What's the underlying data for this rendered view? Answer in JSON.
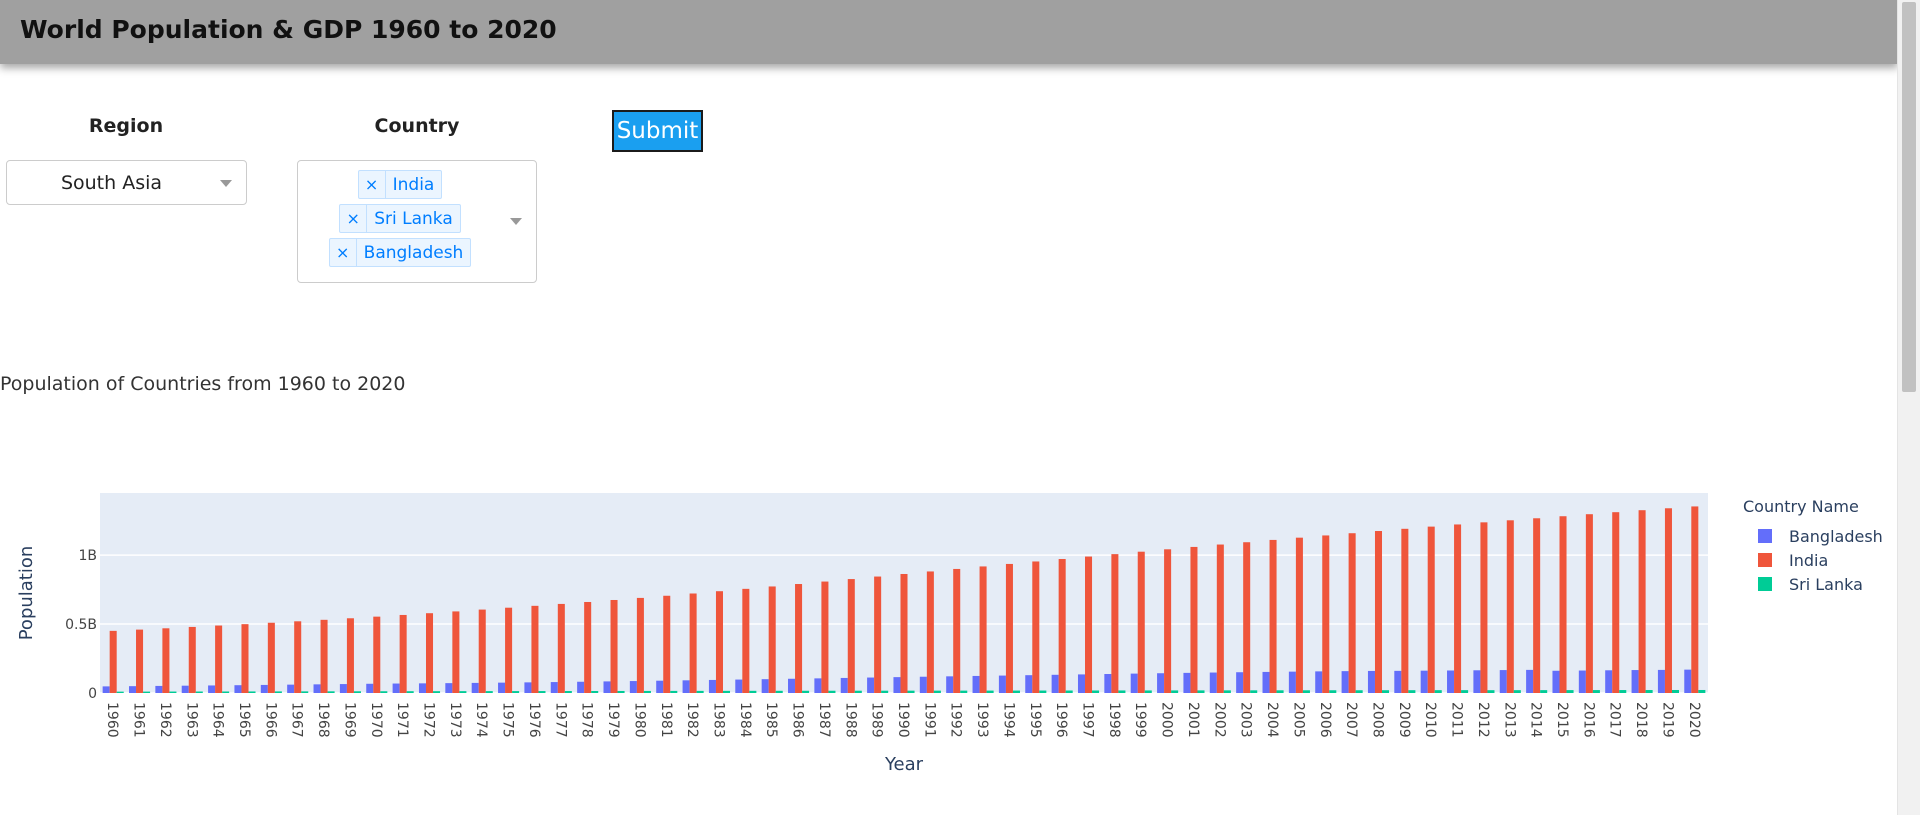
{
  "header": {
    "title": "World Population & GDP 1960 to 2020"
  },
  "controls": {
    "region_label": "Region",
    "region_value": "South Asia",
    "country_label": "Country",
    "selected_countries": [
      "India",
      "Sri Lanka",
      "Bangladesh"
    ],
    "remove_symbol": "×",
    "submit_label": "Submit"
  },
  "section": {
    "title": "Population of Countries from 1960 to 2020"
  },
  "colors": {
    "bangladesh": "#636efa",
    "india": "#ef553b",
    "sri_lanka": "#00cc96",
    "plot_bg": "#e5ecf6"
  },
  "chart_data": {
    "type": "bar",
    "title": "",
    "xlabel": "Year",
    "ylabel": "Population",
    "ylim": [
      0,
      1450000000
    ],
    "y_ticks": [
      0,
      500000000,
      1000000000
    ],
    "y_tick_labels": [
      "0",
      "0.5B",
      "1B"
    ],
    "grid": true,
    "legend": {
      "title": "Country Name",
      "placement": "right"
    },
    "categories": [
      "1960",
      "1961",
      "1962",
      "1963",
      "1964",
      "1965",
      "1966",
      "1967",
      "1968",
      "1969",
      "1970",
      "1971",
      "1972",
      "1973",
      "1974",
      "1975",
      "1976",
      "1977",
      "1978",
      "1979",
      "1980",
      "1981",
      "1982",
      "1983",
      "1984",
      "1985",
      "1986",
      "1987",
      "1988",
      "1989",
      "1990",
      "1991",
      "1992",
      "1993",
      "1994",
      "1995",
      "1996",
      "1997",
      "1998",
      "1999",
      "2000",
      "2001",
      "2002",
      "2003",
      "2004",
      "2005",
      "2006",
      "2007",
      "2008",
      "2009",
      "2010",
      "2011",
      "2012",
      "2013",
      "2014",
      "2015",
      "2016",
      "2017",
      "2018",
      "2019",
      "2020"
    ],
    "series": [
      {
        "name": "Bangladesh",
        "color": "#636efa",
        "values": [
          48000000,
          49600000,
          51300000,
          53000000,
          54700000,
          56600000,
          58500000,
          60600000,
          62700000,
          64800000,
          66900000,
          68600000,
          70000000,
          71500000,
          73200000,
          75100000,
          77100000,
          79300000,
          81600000,
          84100000,
          86600000,
          89200000,
          91900000,
          94600000,
          97400000,
          100200000,
          103200000,
          106100000,
          109100000,
          112100000,
          115100000,
          118000000,
          120800000,
          123600000,
          126300000,
          129200000,
          132000000,
          134800000,
          137700000,
          140600000,
          143300000,
          145900000,
          148300000,
          150600000,
          152800000,
          154900000,
          156800000,
          158500000,
          159900000,
          160500000,
          161900000,
          163200000,
          164700000,
          166200000,
          167600000,
          161200000,
          162900000,
          164700000,
          166400000,
          167400000,
          169400000
        ]
      },
      {
        "name": "India",
        "color": "#ef553b",
        "values": [
          450500000,
          459600000,
          469100000,
          479000000,
          489100000,
          499100000,
          509300000,
          519800000,
          530600000,
          541800000,
          553600000,
          565800000,
          578500000,
          591500000,
          604800000,
          618400000,
          632000000,
          645800000,
          659800000,
          674300000,
          689400000,
          705000000,
          721400000,
          738000000,
          755100000,
          772400000,
          790100000,
          808000000,
          826000000,
          844300000,
          862800000,
          881200000,
          899400000,
          917600000,
          935700000,
          953600000,
          971400000,
          989200000,
          1006800000,
          1024400000,
          1041800000,
          1059000000,
          1076400000,
          1093100000,
          1109800000,
          1126100000,
          1142300000,
          1158400000,
          1174400000,
          1190400000,
          1206300000,
          1221900000,
          1237300000,
          1252100000,
          1266800000,
          1281600000,
          1296300000,
          1310900000,
          1325300000,
          1339300000,
          1352600000
        ]
      },
      {
        "name": "Sri Lanka",
        "color": "#00cc96",
        "values": [
          9900000,
          10200000,
          10500000,
          10800000,
          11000000,
          11300000,
          11600000,
          11900000,
          12200000,
          12500000,
          12800000,
          13100000,
          13300000,
          13500000,
          13700000,
          13900000,
          14100000,
          14300000,
          14500000,
          14700000,
          15000000,
          15200000,
          15400000,
          15600000,
          15800000,
          16000000,
          16200000,
          16400000,
          16600000,
          16800000,
          17000000,
          17200000,
          17300000,
          17500000,
          17700000,
          17900000,
          18100000,
          18300000,
          18500000,
          18600000,
          18800000,
          19000000,
          19200000,
          19400000,
          19600000,
          19700000,
          19900000,
          20000000,
          20200000,
          20400000,
          20600000,
          20700000,
          20400000,
          20600000,
          20800000,
          21000000,
          21200000,
          21400000,
          21600000,
          21800000,
          21900000
        ]
      }
    ]
  }
}
